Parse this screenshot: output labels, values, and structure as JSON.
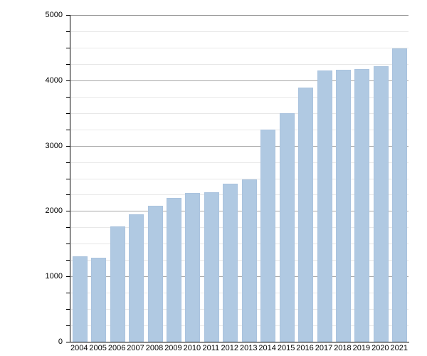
{
  "chart_data": {
    "type": "bar",
    "title": "",
    "xlabel": "",
    "ylabel": "",
    "categories": [
      "2004",
      "2005",
      "2006",
      "2007",
      "2008",
      "2009",
      "2010",
      "2011",
      "2012",
      "2013",
      "2014",
      "2015",
      "2016",
      "2017",
      "2018",
      "2019",
      "2020",
      "2021"
    ],
    "values": [
      1310,
      1280,
      1760,
      1950,
      2080,
      2200,
      2280,
      2290,
      2420,
      2480,
      3250,
      3500,
      3890,
      4150,
      4160,
      4170,
      4220,
      4490
    ],
    "ylim": [
      0,
      5000
    ],
    "y_major_step": 1000,
    "y_minor_step": 250,
    "y_tick_labels": [
      "0",
      "1000",
      "2000",
      "3000",
      "4000",
      "5000"
    ],
    "grid": "on",
    "legend": "none",
    "colors": {
      "bar_fill": "#b0c9e2",
      "bar_edge": "#98b4d2",
      "major_gridline": "#a8a8a8",
      "minor_gridline": "#e8e8e8",
      "top_border": "#8c8c8c",
      "axis": "#000000",
      "text": "#000000"
    }
  }
}
